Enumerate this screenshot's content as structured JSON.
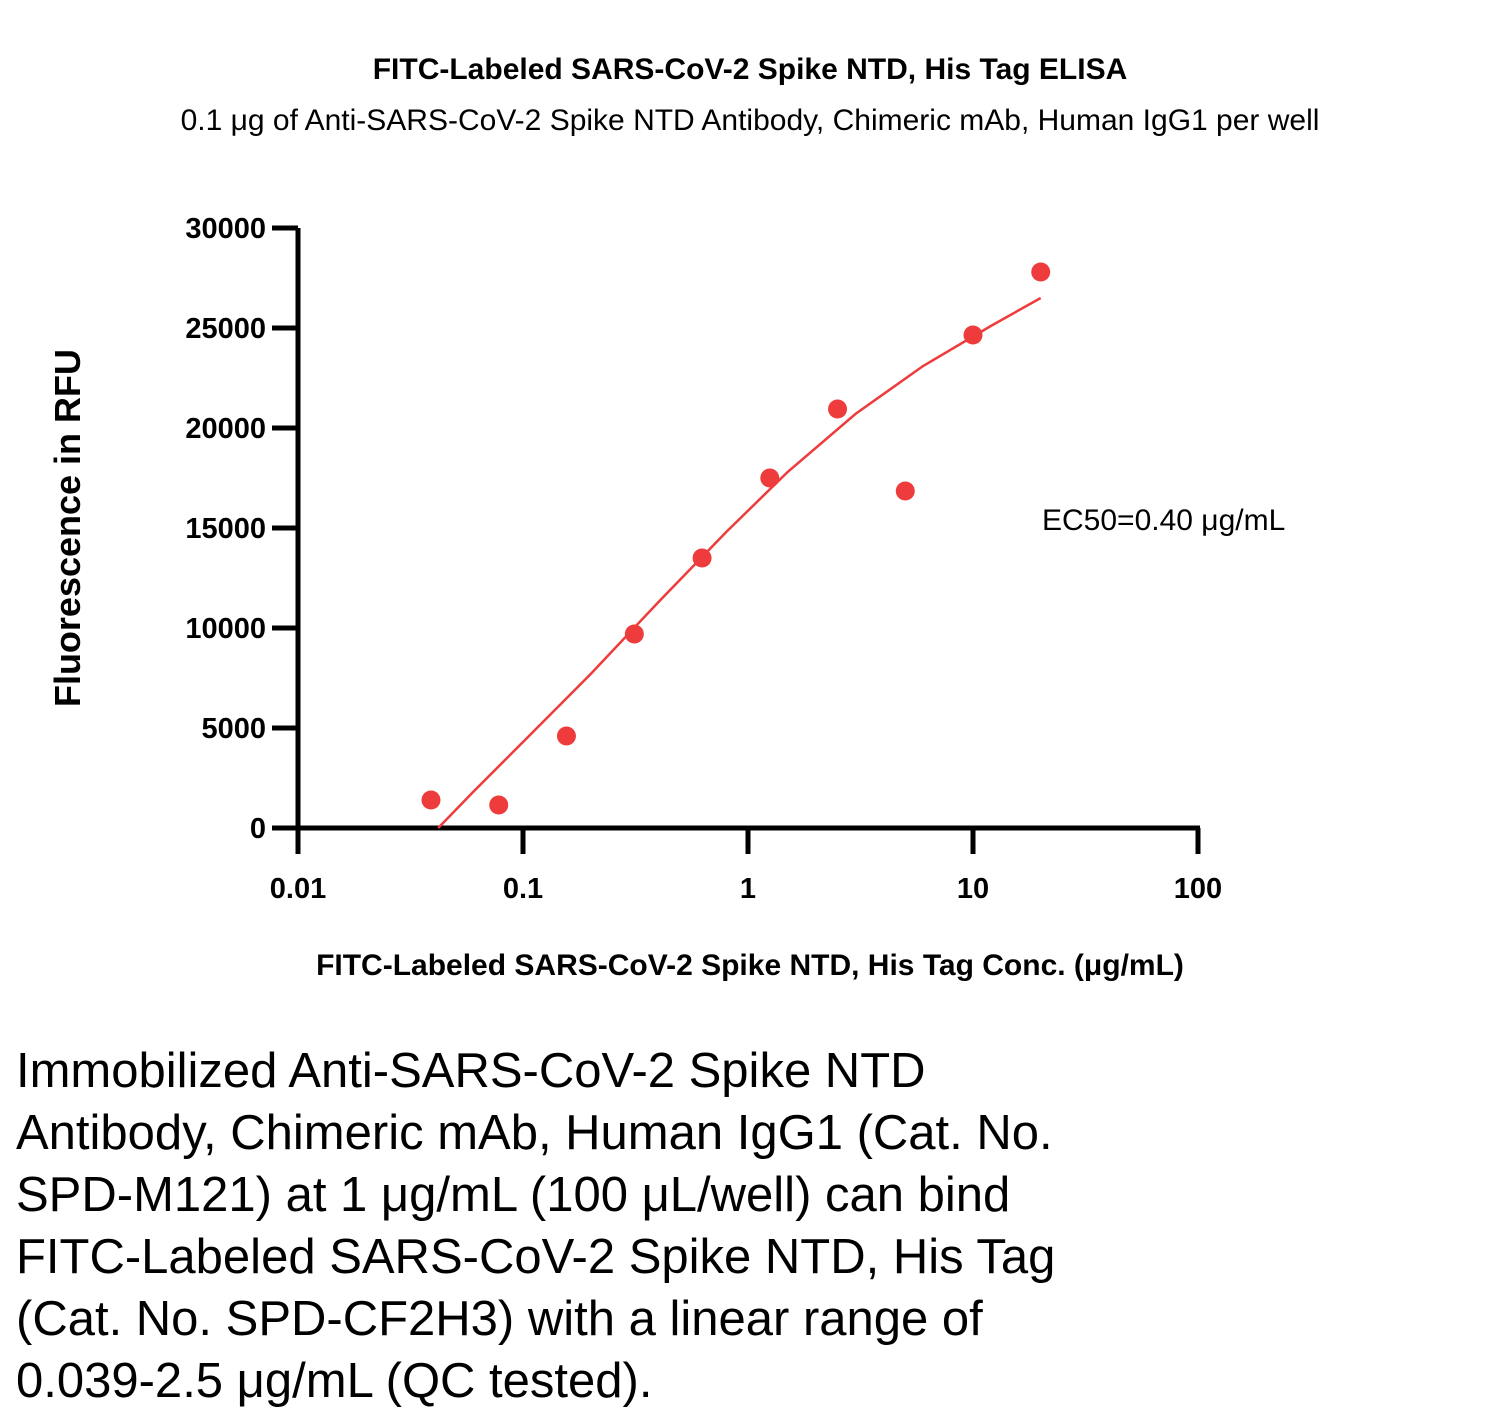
{
  "chart_data": {
    "type": "scatter",
    "title": "FITC-Labeled SARS-CoV-2 Spike NTD, His Tag ELISA",
    "subtitle": "0.1 μg of Anti-SARS-CoV-2 Spike NTD Antibody, Chimeric mAb, Human IgG1 per well",
    "xlabel": "FITC-Labeled SARS-CoV-2 Spike NTD, His Tag Conc. (μg/mL)",
    "ylabel": "Fluorescence in RFU",
    "x_scale": "log",
    "xlim": [
      0.01,
      100
    ],
    "ylim": [
      0,
      30000
    ],
    "x_ticks": [
      "0.01",
      "0.1",
      "1",
      "10",
      "100"
    ],
    "y_ticks": [
      "0",
      "5000",
      "10000",
      "15000",
      "20000",
      "25000",
      "30000"
    ],
    "grid": false,
    "series": [
      {
        "color": "#ee3b3b",
        "points": [
          {
            "x": 0.039,
            "y": 1400
          },
          {
            "x": 0.078,
            "y": 1150
          },
          {
            "x": 0.156,
            "y": 4600
          },
          {
            "x": 0.3125,
            "y": 9700
          },
          {
            "x": 0.625,
            "y": 13500
          },
          {
            "x": 1.25,
            "y": 17500
          },
          {
            "x": 2.5,
            "y": 20950
          },
          {
            "x": 5,
            "y": 16850
          },
          {
            "x": 10,
            "y": 24650
          },
          {
            "x": 20,
            "y": 27800
          }
        ],
        "fit_curve": [
          {
            "x": 0.042,
            "y": 0
          },
          {
            "x": 0.06,
            "y": 1800
          },
          {
            "x": 0.1,
            "y": 4300
          },
          {
            "x": 0.2,
            "y": 7700
          },
          {
            "x": 0.4,
            "y": 11300
          },
          {
            "x": 0.8,
            "y": 14800
          },
          {
            "x": 1.5,
            "y": 17800
          },
          {
            "x": 3,
            "y": 20700
          },
          {
            "x": 6,
            "y": 23100
          },
          {
            "x": 12,
            "y": 25100
          },
          {
            "x": 20,
            "y": 26500
          }
        ]
      }
    ],
    "annotations": [
      "EC50=0.40 μg/mL"
    ]
  },
  "caption": [
    "Immobilized Anti-SARS-CoV-2 Spike NTD",
    "Antibody, Chimeric mAb, Human IgG1 (Cat. No.",
    "SPD-M121) at 1 μg/mL (100 μL/well) can bind",
    "FITC-Labeled SARS-CoV-2 Spike NTD, His Tag",
    "(Cat. No. SPD-CF2H3) with a linear range of",
    "0.039-2.5 μg/mL (QC tested)."
  ]
}
